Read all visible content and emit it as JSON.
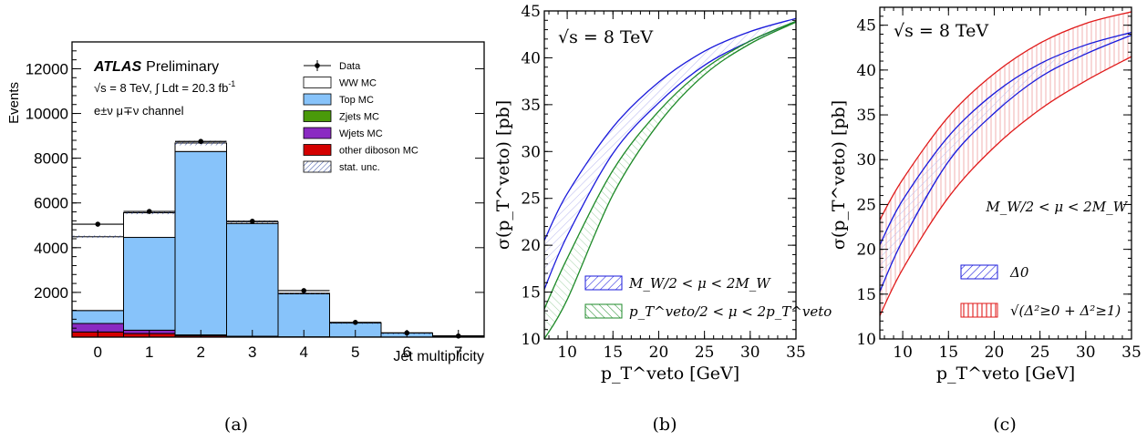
{
  "captions": [
    "(a)",
    "(b)",
    "(c)"
  ],
  "colors": {
    "top_mc": "#87c3fa",
    "ww_mc": "#ffffff",
    "zjets": "#4a9a0a",
    "wjets": "#8a2ac2",
    "other_diboson": "#d40000",
    "blue_band": "#1a1adb",
    "green_band": "#1e8a28",
    "red_band": "#e01a1a"
  },
  "chart_data": [
    {
      "type": "bar",
      "stacked": true,
      "experiment": "ATLAS",
      "status": "Preliminary",
      "energy_label": "√s = 8 TeV, ∫ Ldt = 20.3 fb",
      "lumi_exponent": "-1",
      "channel": "e±ν μ∓ν channel",
      "xlabel": "Jet multiplicity",
      "ylabel": "Events",
      "ylim": [
        0,
        13200
      ],
      "yticks": [
        2000,
        4000,
        6000,
        8000,
        10000,
        12000
      ],
      "xticks": [
        "0",
        "1",
        "2",
        "3",
        "4",
        "5",
        "6",
        "7"
      ],
      "categories": [
        "0",
        "1",
        "2",
        "3",
        "4",
        "5",
        "6",
        "7"
      ],
      "series": [
        {
          "name": "other diboson MC",
          "values": [
            230,
            160,
            60,
            25,
            10,
            5,
            2,
            1
          ]
        },
        {
          "name": "Wjets MC",
          "values": [
            380,
            150,
            40,
            15,
            5,
            2,
            1,
            0
          ]
        },
        {
          "name": "Zjets MC",
          "values": [
            0,
            0,
            0,
            0,
            0,
            0,
            0,
            0
          ]
        },
        {
          "name": "Top MC",
          "values": [
            580,
            4150,
            8200,
            5040,
            1920,
            630,
            180,
            50
          ]
        },
        {
          "name": "WW MC",
          "values": [
            3300,
            1100,
            380,
            80,
            25,
            8,
            3,
            1
          ]
        }
      ],
      "data": {
        "name": "Data",
        "values": [
          5050,
          5620,
          8750,
          5180,
          2080,
          660,
          190,
          50
        ]
      },
      "legend": [
        "Data",
        "WW MC",
        "Top MC",
        "Zjets MC",
        "Wjets MC",
        "other diboson MC",
        "stat. unc."
      ]
    },
    {
      "type": "line",
      "annotation": "√s = 8 TeV",
      "xlabel": "p_T^veto [GeV]",
      "ylabel": "σ(p_T^veto) [pb]",
      "xlim": [
        7.5,
        35
      ],
      "ylim": [
        10,
        45
      ],
      "xticks": [
        10,
        15,
        20,
        25,
        30,
        35
      ],
      "yticks": [
        10,
        15,
        20,
        25,
        30,
        35,
        40,
        45
      ],
      "legend": [
        {
          "label": "M_W/2 < μ < 2M_W",
          "color": "blue"
        },
        {
          "label": "p_T^veto/2 < μ < 2p_T^veto",
          "color": "green"
        }
      ],
      "series": [
        {
          "band": "blue",
          "edge": "upper",
          "x": [
            7.5,
            10,
            15,
            20,
            25,
            30,
            35
          ],
          "y": [
            20.5,
            25.5,
            32.6,
            37.4,
            40.7,
            42.8,
            44.2
          ]
        },
        {
          "band": "blue",
          "edge": "lower",
          "x": [
            7.5,
            10,
            15,
            20,
            25,
            30,
            35
          ],
          "y": [
            15.3,
            21.0,
            29.8,
            35.2,
            39.2,
            41.8,
            43.9
          ]
        },
        {
          "band": "green",
          "edge": "upper",
          "x": [
            7.5,
            10,
            15,
            20,
            25,
            30,
            35
          ],
          "y": [
            13.2,
            18.6,
            28.0,
            34.3,
            38.8,
            41.8,
            43.9
          ]
        },
        {
          "band": "green",
          "edge": "lower",
          "x": [
            7.5,
            10,
            15,
            20,
            25,
            30,
            35
          ],
          "y": [
            10.0,
            14.2,
            25.4,
            33.0,
            38.2,
            41.5,
            43.8
          ]
        }
      ]
    },
    {
      "type": "line",
      "annotation": "√s = 8 TeV",
      "scale_label": "M_W/2 < μ < 2M_W",
      "xlabel": "p_T^veto [GeV]",
      "ylabel": "σ(p_T^veto) [pb]",
      "xlim": [
        7.5,
        35
      ],
      "ylim": [
        10,
        47
      ],
      "xticks": [
        10,
        15,
        20,
        25,
        30,
        35
      ],
      "yticks": [
        10,
        15,
        20,
        25,
        30,
        35,
        40,
        45
      ],
      "legend": [
        {
          "label": "Δ0",
          "color": "blue"
        },
        {
          "label": "√(Δ²≥0 + Δ²≥1)",
          "color": "red"
        }
      ],
      "series": [
        {
          "band": "red",
          "edge": "upper",
          "x": [
            7.5,
            10,
            15,
            20,
            25,
            30,
            35
          ],
          "y": [
            23.3,
            27.8,
            34.8,
            39.6,
            43.0,
            45.2,
            46.5
          ]
        },
        {
          "band": "red",
          "edge": "lower",
          "x": [
            7.5,
            10,
            15,
            20,
            25,
            30,
            35
          ],
          "y": [
            12.6,
            17.8,
            25.8,
            31.4,
            35.6,
            38.8,
            41.5
          ]
        },
        {
          "band": "blue",
          "edge": "upper",
          "x": [
            7.5,
            10,
            15,
            20,
            25,
            30,
            35
          ],
          "y": [
            20.5,
            25.5,
            32.6,
            37.4,
            40.7,
            42.8,
            44.2
          ]
        },
        {
          "band": "blue",
          "edge": "lower",
          "x": [
            7.5,
            10,
            15,
            20,
            25,
            30,
            35
          ],
          "y": [
            15.3,
            21.0,
            29.8,
            35.2,
            39.2,
            41.8,
            43.9
          ]
        }
      ]
    }
  ]
}
